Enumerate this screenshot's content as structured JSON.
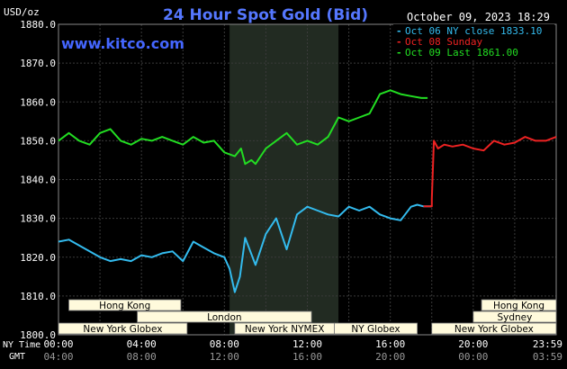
{
  "header": {
    "title": "24 Hour Spot Gold (Bid)",
    "timestamp": "October 09, 2023 18:29",
    "units": "USD/oz",
    "watermark": "www.kitco.com"
  },
  "legend": [
    {
      "label": "Oct 06 NY close 1833.10",
      "color": "#33bbee"
    },
    {
      "label": "Oct 08 Sunday",
      "color": "#ee2222"
    },
    {
      "label": "Oct 09 Last 1861.00",
      "color": "#22dd22"
    }
  ],
  "time_axis": {
    "row1_label": "NY Time",
    "row2_label": "GMT",
    "ny_ticks": [
      "00:00",
      "04:00",
      "08:00",
      "12:00",
      "16:00",
      "20:00",
      "23:59"
    ],
    "gmt_ticks": [
      "04:00",
      "08:00",
      "12:00",
      "16:00",
      "20:00",
      "00:00",
      "03:59"
    ]
  },
  "sessions": {
    "row1": [
      {
        "label": "Hong Kong",
        "start": 0.5,
        "end": 5.9
      },
      {
        "label": "Hong Kong",
        "start": 20.4,
        "end": 24
      }
    ],
    "row2": [
      {
        "label": "London",
        "start": 3.8,
        "end": 12.2
      },
      {
        "label": "Sydney",
        "start": 20.0,
        "end": 24
      }
    ],
    "row3": [
      {
        "label": "New York Globex",
        "start": 0,
        "end": 6.2
      },
      {
        "label": "New York NYMEX",
        "start": 8.5,
        "end": 13.3
      },
      {
        "label": "NY Globex",
        "start": 13.3,
        "end": 17.3
      },
      {
        "label": "New York Globex",
        "start": 18.0,
        "end": 24
      }
    ]
  },
  "highlight_band": {
    "start": 8.25,
    "end": 13.5
  },
  "colors": {
    "background": "#000000",
    "plot_bg": "#000000",
    "highlight": "#222b22",
    "grid": "#3a3a3a",
    "title": "#5577ff",
    "watermark": "#4466ff",
    "text": "#ffffff",
    "session_fill": "#fffadc"
  },
  "chart_data": {
    "type": "line",
    "ylabel": "USD/oz",
    "ylim": [
      1800,
      1880
    ],
    "y_ticks": [
      1800,
      1810,
      1820,
      1830,
      1840,
      1850,
      1860,
      1870,
      1880
    ],
    "xlim": [
      0,
      24
    ],
    "series": [
      {
        "name": "Oct 06 NY close 1833.10",
        "color": "#33bbee",
        "x": [
          0,
          0.5,
          1,
          1.5,
          2,
          2.5,
          3,
          3.5,
          4,
          4.5,
          5,
          5.5,
          6,
          6.5,
          7,
          7.5,
          8,
          8.25,
          8.5,
          8.75,
          9,
          9.5,
          10,
          10.5,
          11,
          11.5,
          12,
          12.5,
          13,
          13.5,
          14,
          14.5,
          15,
          15.5,
          16,
          16.5,
          17,
          17.3,
          17.6,
          18
        ],
        "y": [
          1824,
          1824.5,
          1823,
          1821.5,
          1820,
          1819,
          1819.5,
          1819,
          1820.5,
          1820,
          1821,
          1821.5,
          1819,
          1824,
          1822.5,
          1821,
          1820,
          1817,
          1811,
          1815,
          1825,
          1818,
          1826,
          1830,
          1822,
          1831,
          1833,
          1832,
          1831,
          1830.5,
          1833,
          1832,
          1833,
          1831,
          1830,
          1829.5,
          1833,
          1833.5,
          1833.1,
          1833.1
        ]
      },
      {
        "name": "Oct 08 Sunday",
        "color": "#ee2222",
        "x": [
          17.6,
          18,
          18,
          18.1,
          18.3,
          18.6,
          19,
          19.5,
          20,
          20.5,
          21,
          21.5,
          22,
          22.5,
          23,
          23.5,
          24
        ],
        "y": [
          1833.1,
          1833.1,
          1835,
          1850,
          1848,
          1849,
          1848.5,
          1849,
          1848,
          1847.5,
          1850,
          1849,
          1849.5,
          1851,
          1850,
          1850,
          1851
        ]
      },
      {
        "name": "Oct 09 Last 1861.00",
        "color": "#22dd22",
        "x": [
          0,
          0.5,
          1,
          1.5,
          2,
          2.5,
          3,
          3.5,
          4,
          4.5,
          5,
          5.5,
          6,
          6.5,
          7,
          7.5,
          8,
          8.5,
          8.8,
          9,
          9.3,
          9.5,
          10,
          10.5,
          11,
          11.5,
          12,
          12.5,
          13,
          13.5,
          14,
          14.5,
          15,
          15.5,
          16,
          16.5,
          17,
          17.5,
          17.8
        ],
        "y": [
          1850,
          1852,
          1850,
          1849,
          1852,
          1853,
          1850,
          1849,
          1850.5,
          1850,
          1851,
          1850,
          1849,
          1851,
          1849.5,
          1850,
          1847,
          1846,
          1848,
          1844,
          1845,
          1844,
          1848,
          1850,
          1852,
          1849,
          1850,
          1849,
          1851,
          1856,
          1855,
          1856,
          1857,
          1862,
          1863,
          1862,
          1861.5,
          1861,
          1861
        ]
      }
    ]
  }
}
